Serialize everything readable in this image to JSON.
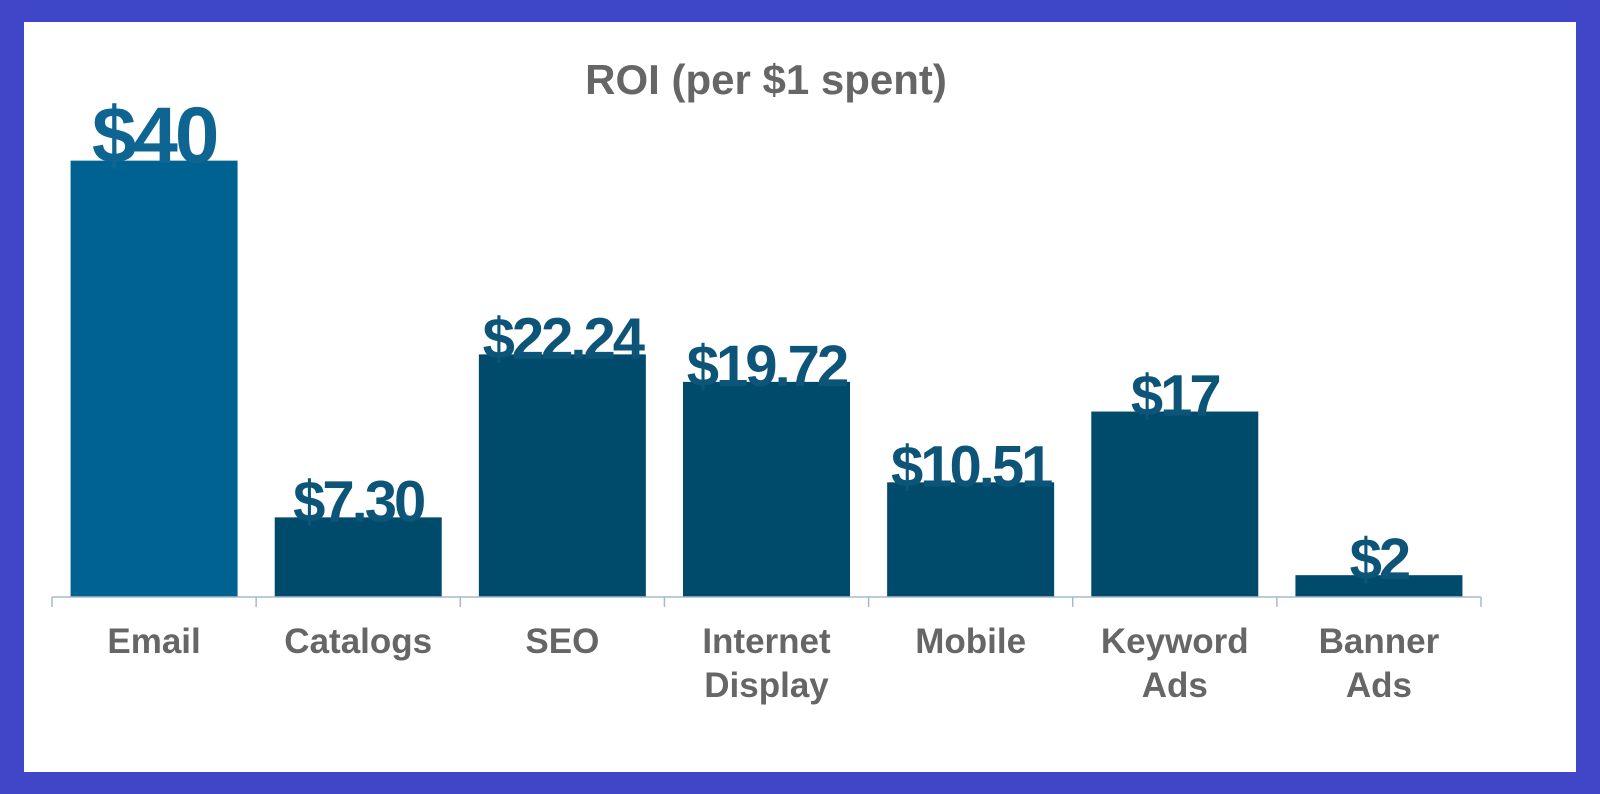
{
  "chart_data": {
    "type": "bar",
    "title": "ROI (per $1 spent)",
    "xlabel": "",
    "ylabel": "",
    "categories": [
      [
        "Email"
      ],
      [
        "Catalogs"
      ],
      [
        "SEO"
      ],
      [
        "Internet",
        "Display"
      ],
      [
        "Mobile"
      ],
      [
        "Keyword",
        "Ads"
      ],
      [
        "Banner",
        "Ads"
      ]
    ],
    "values": [
      40,
      7.3,
      22.24,
      19.72,
      10.51,
      17,
      2
    ],
    "data_labels": [
      "$40",
      "$7.30",
      "$22.24",
      "$19.72",
      "$10.51",
      "$17",
      "$2"
    ],
    "ylim": [
      0,
      44
    ],
    "grid": false,
    "legend": "none",
    "colors": {
      "highlight_bar": "#006290",
      "bar": "#004a6b",
      "highlight_label": "#0f6592",
      "label": "#0d5578",
      "axis": "#a6b8d2",
      "text": "#666666",
      "frame": "#4046c8"
    }
  }
}
